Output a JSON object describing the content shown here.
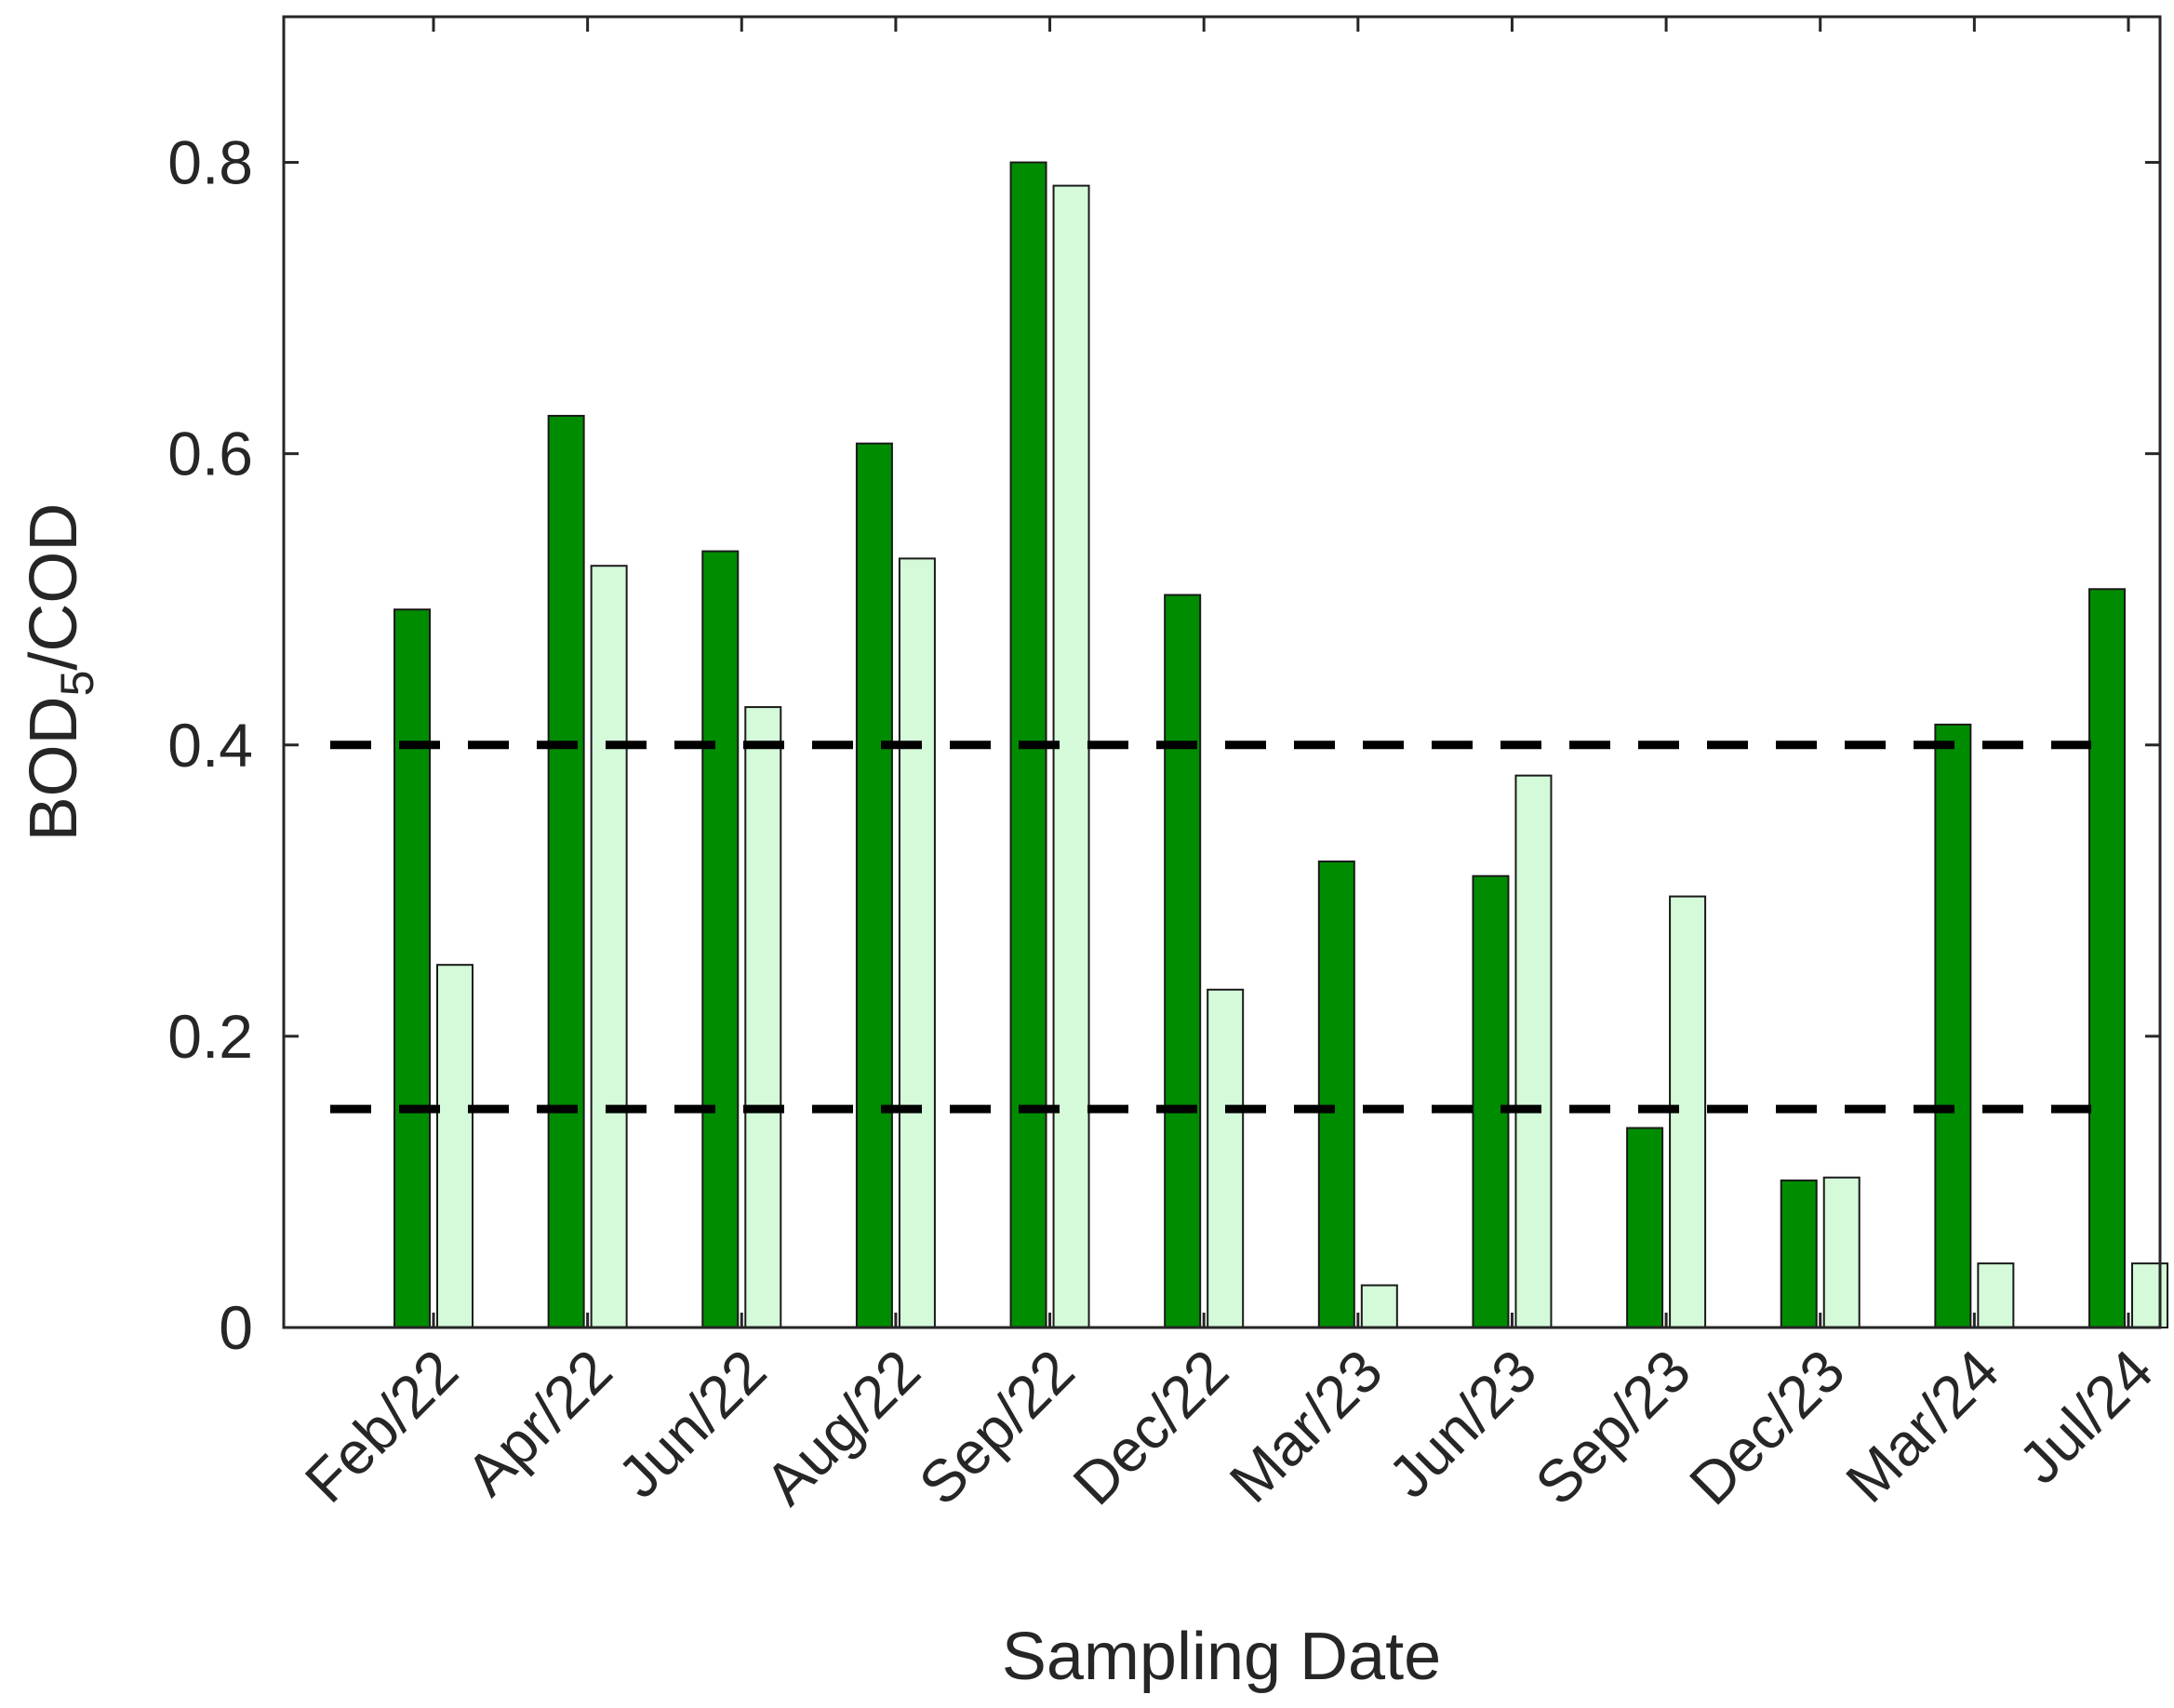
{
  "chart_data": {
    "type": "bar",
    "title": "",
    "xlabel": "Sampling Date",
    "ylabel": {
      "main": "BOD",
      "sub": "5",
      "rest": "/COD"
    },
    "ylim": [
      0,
      0.9
    ],
    "yticks": [
      0,
      0.2,
      0.4,
      0.6,
      0.8
    ],
    "ytick_labels": [
      "0",
      "0.2",
      "0.4",
      "0.6",
      "0.8"
    ],
    "grid": false,
    "categories": [
      "Feb/22",
      "Apr/22",
      "Jun/22",
      "Aug/22",
      "Sep/22",
      "Dec/22",
      "Mar/23",
      "Jun/23",
      "Sep/23",
      "Dec/23",
      "Mar/24",
      "Jul/24"
    ],
    "series": [
      {
        "color": "#008c00",
        "values": [
          0.493,
          0.626,
          0.533,
          0.607,
          0.8,
          0.503,
          0.32,
          0.31,
          0.137,
          0.101,
          0.414,
          0.507
        ]
      },
      {
        "color": "#d4fad9",
        "values": [
          0.249,
          0.523,
          0.426,
          0.528,
          0.784,
          0.232,
          0.029,
          0.379,
          0.296,
          0.103,
          0.044,
          0.044
        ]
      }
    ],
    "reference_lines": [
      {
        "y": 0.4,
        "style": "dashed",
        "color": "#000000"
      },
      {
        "y": 0.15,
        "style": "dashed",
        "color": "#000000"
      }
    ]
  }
}
